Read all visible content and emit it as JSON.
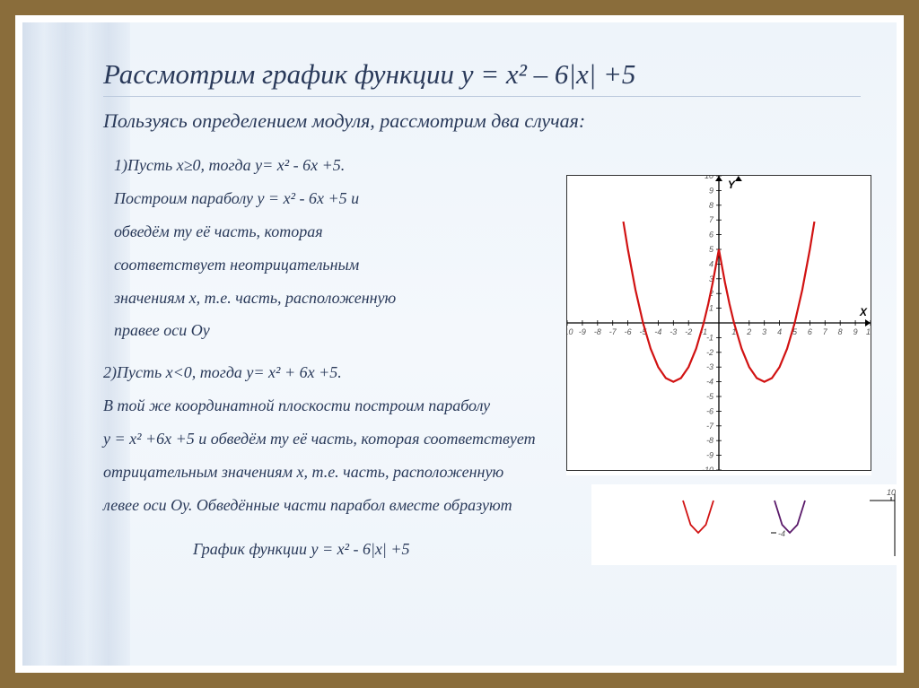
{
  "title": "Рассмотрим график функции у = х² – 6|х| +5",
  "subtitle": "Пользуясь определением модуля, рассмотрим два случая:",
  "para1_lines": [
    "1)Пусть х≥0, тогда у= х² - 6х +5.",
    "Построим параболу  у = х² - 6х +5 и",
    "обведём ту её часть, которая",
    "соответствует неотрицательным",
    "значениям х, т.е. часть, расположенную",
    "правее оси Оу"
  ],
  "para2_lines": [
    "2)Пусть х<0, тогда  у= х² + 6х +5.",
    "В той же координатной плоскости построим параболу",
    " у = х² +6х +5 и обведём ту её часть, которая соответствует",
    "отрицательным значениям х, т.е. часть, расположенную",
    "левее оси Оу. Обведённые части парабол вместе образуют"
  ],
  "footer": "График функции   у = х² - 6|х| +5",
  "chart": {
    "type": "line",
    "background": "#ffffff",
    "axis_color": "#000000",
    "grid_color": "#e6e6e6",
    "curve_color": "#d11212",
    "curve_width": 2.2,
    "tick_color": "#555555",
    "tick_fontsize": 9,
    "axis_label_color": "#000000",
    "x_label": "X",
    "y_label": "Y",
    "xlim": [
      -10,
      10
    ],
    "ylim": [
      -10,
      10
    ],
    "xtick_step": 1,
    "ytick_step": 1,
    "series": {
      "x": [
        -6.3,
        -6,
        -5.5,
        -5,
        -4.5,
        -4,
        -3.5,
        -3,
        -2.5,
        -2,
        -1.5,
        -1,
        -0.7,
        -0.4,
        0,
        0.4,
        0.7,
        1,
        1.5,
        2,
        2.5,
        3,
        3.5,
        4,
        4.5,
        5,
        5.5,
        6,
        6.3
      ],
      "y": [
        6.89,
        5,
        2.25,
        0,
        -1.75,
        -3,
        -3.75,
        -4,
        -3.75,
        -3,
        -1.75,
        0,
        1.29,
        2.76,
        5,
        2.76,
        1.29,
        0,
        -1.75,
        -3,
        -3.75,
        -4,
        -3.75,
        -3,
        -1.75,
        0,
        2.25,
        5,
        6.89
      ]
    }
  },
  "secondary_chart": {
    "type": "line",
    "background": "#ffffff",
    "axis_color": "#000000",
    "curve_colors": [
      "#d11212",
      "#5a1a6a"
    ],
    "curve_width": 1.8,
    "xlim": [
      -10,
      10
    ],
    "ylim_visible": [
      -4.5,
      -3.5
    ],
    "right_edge_tick": "10",
    "frag1": {
      "x": [
        -4,
        -3.5,
        -3,
        -2.5,
        -2
      ],
      "y": [
        -3,
        -3.75,
        -4,
        -3.75,
        -3
      ]
    },
    "frag2": {
      "x": [
        2,
        2.5,
        3,
        3.5,
        4
      ],
      "y": [
        -3,
        -3.75,
        -4,
        -3.75,
        -3
      ]
    }
  }
}
